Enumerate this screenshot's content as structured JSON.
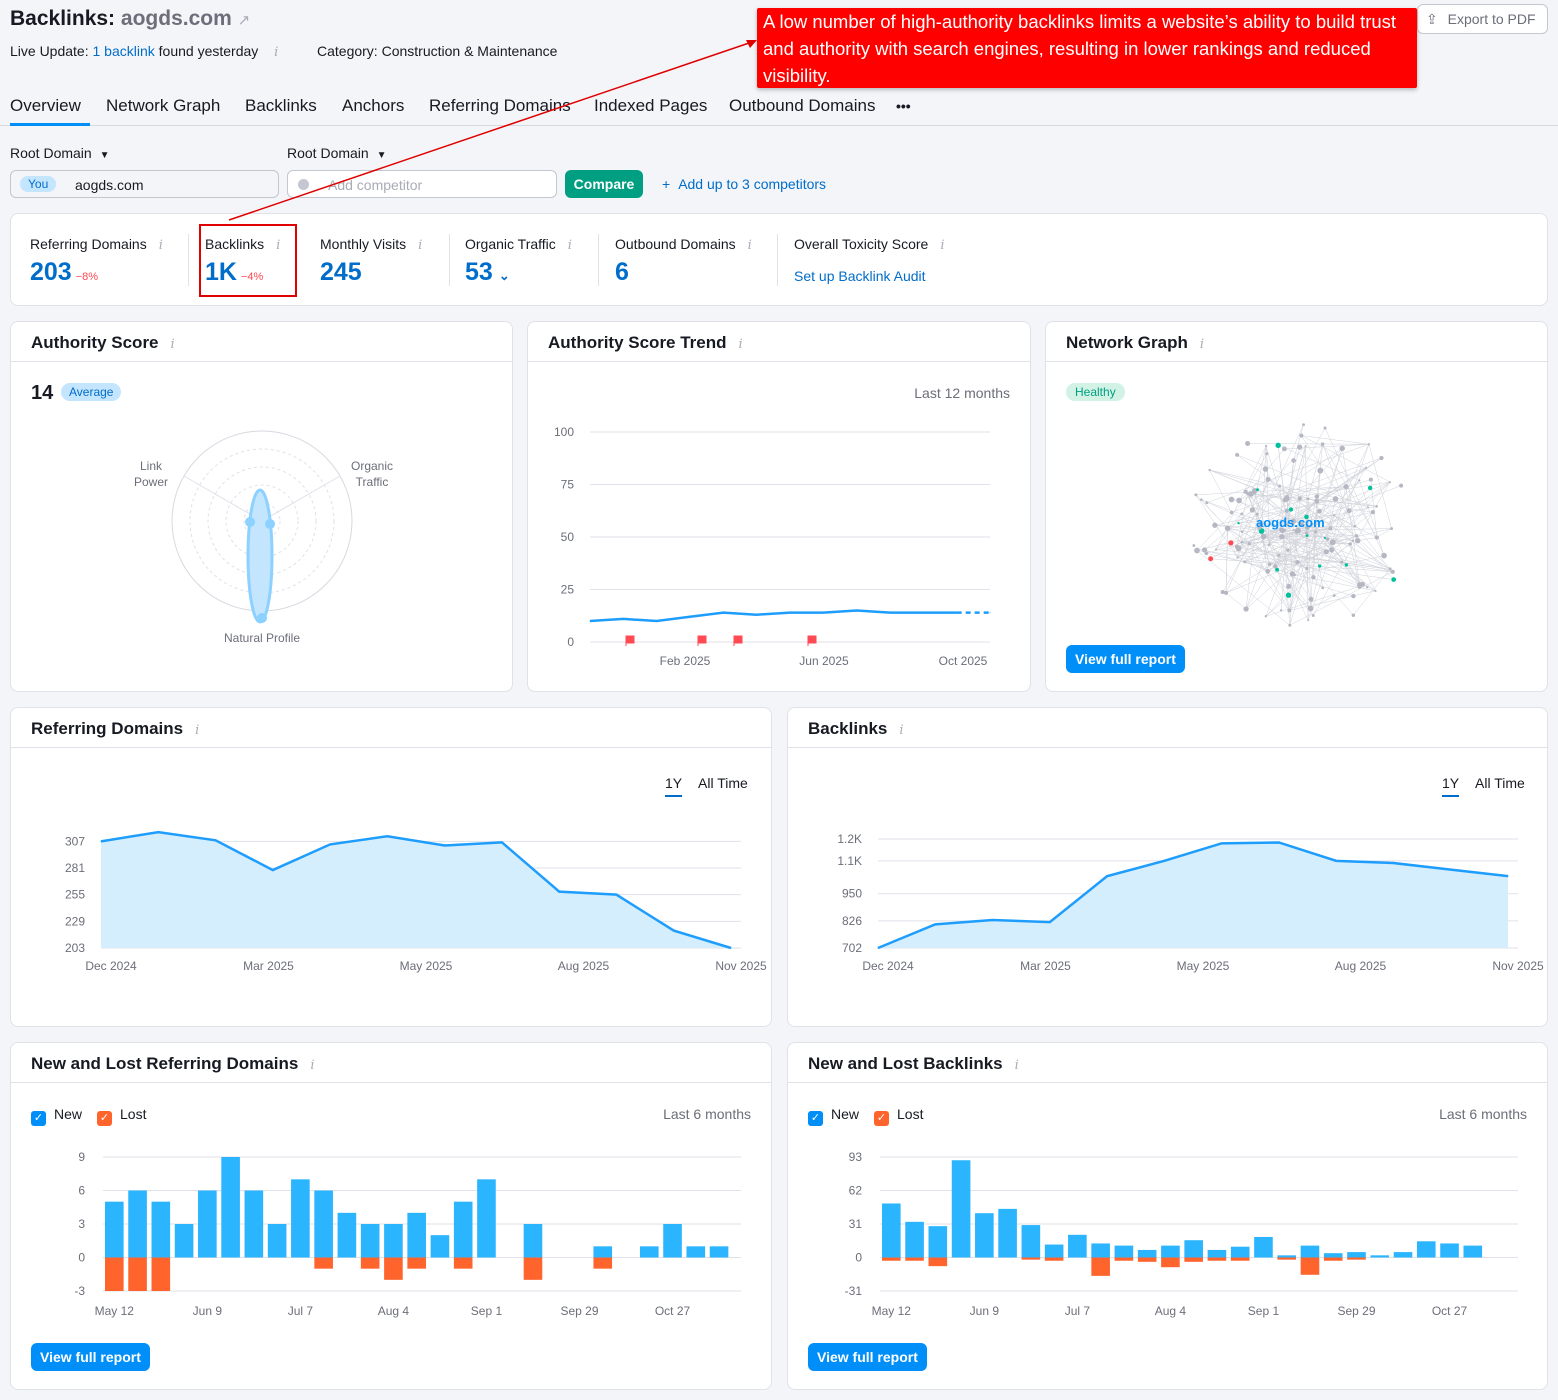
{
  "header": {
    "title_prefix": "Backlinks:",
    "domain": "aogds.com",
    "export_label": "Export to PDF",
    "live_update_label": "Live Update:",
    "live_update_link": "1 backlink",
    "live_update_suffix": "found yesterday",
    "category": "Category: Construction & Maintenance"
  },
  "annotation": {
    "text": "A low number of high-authority backlinks limits a website’s ability to build trust and authority with search engines, resulting in lower rankings and reduced visibility.",
    "color": "#ff0000"
  },
  "tabs": [
    "Overview",
    "Network Graph",
    "Backlinks",
    "Anchors",
    "Referring Domains",
    "Indexed Pages",
    "Outbound Domains",
    "•••"
  ],
  "compare": {
    "root_label_1": "Root Domain",
    "root_label_2": "Root Domain",
    "you_badge": "You",
    "you_value": "aogds.com",
    "competitor_placeholder": "Add competitor",
    "compare_button": "Compare",
    "add_competitors": "Add up to 3 competitors"
  },
  "metrics": {
    "referring_domains": {
      "label": "Referring Domains",
      "value": "203",
      "delta": "−8%"
    },
    "backlinks": {
      "label": "Backlinks",
      "value": "1K",
      "delta": "−4%"
    },
    "monthly_visits": {
      "label": "Monthly Visits",
      "value": "245"
    },
    "organic_traffic": {
      "label": "Organic Traffic",
      "value": "53"
    },
    "outbound_domains": {
      "label": "Outbound Domains",
      "value": "6"
    },
    "toxicity": {
      "label": "Overall Toxicity Score",
      "link": "Set up Backlink Audit"
    }
  },
  "authority_score": {
    "title": "Authority Score",
    "value": "14",
    "badge": "Average",
    "axis_link_power": "Link Power",
    "axis_organic_traffic": "Organic Traffic",
    "axis_natural_profile": "Natural Profile"
  },
  "authority_trend": {
    "title": "Authority Score Trend",
    "period": "Last 12 months",
    "y_ticks": [
      "100",
      "75",
      "50",
      "25",
      "0"
    ],
    "x_ticks": [
      "Feb 2025",
      "Jun 2025",
      "Oct 2025"
    ]
  },
  "network_graph": {
    "title": "Network Graph",
    "badge": "Healthy",
    "center_label": "aogds.com",
    "button": "View full report"
  },
  "referring_domains_chart": {
    "title": "Referring Domains",
    "range_1y": "1Y",
    "range_all": "All Time",
    "y_ticks": [
      "307",
      "281",
      "255",
      "229",
      "203"
    ],
    "x_ticks": [
      "Dec 2024",
      "Mar 2025",
      "May 2025",
      "Aug 2025",
      "Nov 2025"
    ]
  },
  "backlinks_chart": {
    "title": "Backlinks",
    "range_1y": "1Y",
    "range_all": "All Time",
    "y_ticks": [
      "1.2K",
      "1.1K",
      "950",
      "826",
      "702"
    ],
    "x_ticks": [
      "Dec 2024",
      "Mar 2025",
      "May 2025",
      "Aug 2025",
      "Nov 2025"
    ]
  },
  "new_lost_rd": {
    "title": "New and Lost Referring Domains",
    "legend_new": "New",
    "legend_lost": "Lost",
    "period": "Last 6 months",
    "y_ticks": [
      "9",
      "6",
      "3",
      "0",
      "-3"
    ],
    "x_ticks": [
      "May 12",
      "Jun 9",
      "Jul 7",
      "Aug 4",
      "Sep 1",
      "Sep 29",
      "Oct 27"
    ],
    "button": "View full report"
  },
  "new_lost_bl": {
    "title": "New and Lost Backlinks",
    "legend_new": "New",
    "legend_lost": "Lost",
    "period": "Last 6 months",
    "y_ticks": [
      "93",
      "62",
      "31",
      "0",
      "-31"
    ],
    "x_ticks": [
      "May 12",
      "Jun 9",
      "Jul 7",
      "Aug 4",
      "Sep 1",
      "Sep 29",
      "Oct 27"
    ],
    "button": "View full report"
  },
  "chart_data": [
    {
      "type": "line",
      "title": "Authority Score Trend",
      "ylim": [
        0,
        100
      ],
      "x": [
        "Nov 2024",
        "Dec 2024",
        "Jan 2025",
        "Feb 2025",
        "Mar 2025",
        "Apr 2025",
        "May 2025",
        "Jun 2025",
        "Jul 2025",
        "Aug 2025",
        "Sep 2025",
        "Oct 2025",
        "Nov 2025"
      ],
      "values": [
        10,
        11,
        10,
        12,
        14,
        13,
        14,
        14,
        15,
        14,
        14,
        14,
        14
      ]
    },
    {
      "type": "area",
      "title": "Referring Domains",
      "ylim": [
        203,
        320
      ],
      "x": [
        "Dec 2024",
        "Jan 2025",
        "Feb 2025",
        "Mar 2025",
        "Apr 2025",
        "May 2025",
        "Jun 2025",
        "Jul 2025",
        "Aug 2025",
        "Sep 2025",
        "Oct 2025",
        "Nov 2025"
      ],
      "values": [
        307,
        316,
        308,
        279,
        304,
        312,
        303,
        306,
        258,
        255,
        220,
        203
      ]
    },
    {
      "type": "area",
      "title": "Backlinks",
      "ylim": [
        702,
        1250
      ],
      "x": [
        "Dec 2024",
        "Jan 2025",
        "Feb 2025",
        "Mar 2025",
        "Apr 2025",
        "May 2025",
        "Jun 2025",
        "Jul 2025",
        "Aug 2025",
        "Sep 2025",
        "Oct 2025",
        "Nov 2025"
      ],
      "values": [
        702,
        810,
        830,
        820,
        1030,
        1100,
        1180,
        1184,
        1100,
        1090,
        1060,
        1030
      ]
    },
    {
      "type": "bar",
      "title": "New and Lost Referring Domains",
      "ylim": [
        -3,
        9
      ],
      "series": [
        {
          "name": "New",
          "values": [
            5,
            6,
            5,
            3,
            6,
            9,
            6,
            3,
            7,
            6,
            4,
            3,
            3,
            4,
            2,
            5,
            7,
            0,
            3,
            0,
            0,
            1,
            0,
            1,
            3,
            1,
            1
          ]
        },
        {
          "name": "Lost",
          "values": [
            -3,
            -3,
            -3,
            0,
            0,
            0,
            0,
            0,
            0,
            -1,
            0,
            -1,
            -2,
            -1,
            0,
            -1,
            0,
            0,
            -2,
            0,
            0,
            -1,
            0,
            0,
            0,
            0,
            0
          ]
        }
      ]
    },
    {
      "type": "bar",
      "title": "New and Lost Backlinks",
      "ylim": [
        -31,
        93
      ],
      "series": [
        {
          "name": "New",
          "values": [
            50,
            33,
            29,
            90,
            41,
            45,
            30,
            12,
            21,
            13,
            11,
            7,
            11,
            16,
            7,
            10,
            19,
            2,
            11,
            4,
            5,
            2,
            5,
            15,
            13,
            11,
            0
          ]
        },
        {
          "name": "Lost",
          "values": [
            -3,
            -3,
            -8,
            0,
            0,
            0,
            -2,
            -3,
            0,
            -17,
            -3,
            -4,
            -9,
            -4,
            -3,
            -3,
            0,
            -2,
            -16,
            -3,
            -2,
            0,
            0,
            0,
            0,
            0,
            0
          ]
        }
      ]
    }
  ]
}
